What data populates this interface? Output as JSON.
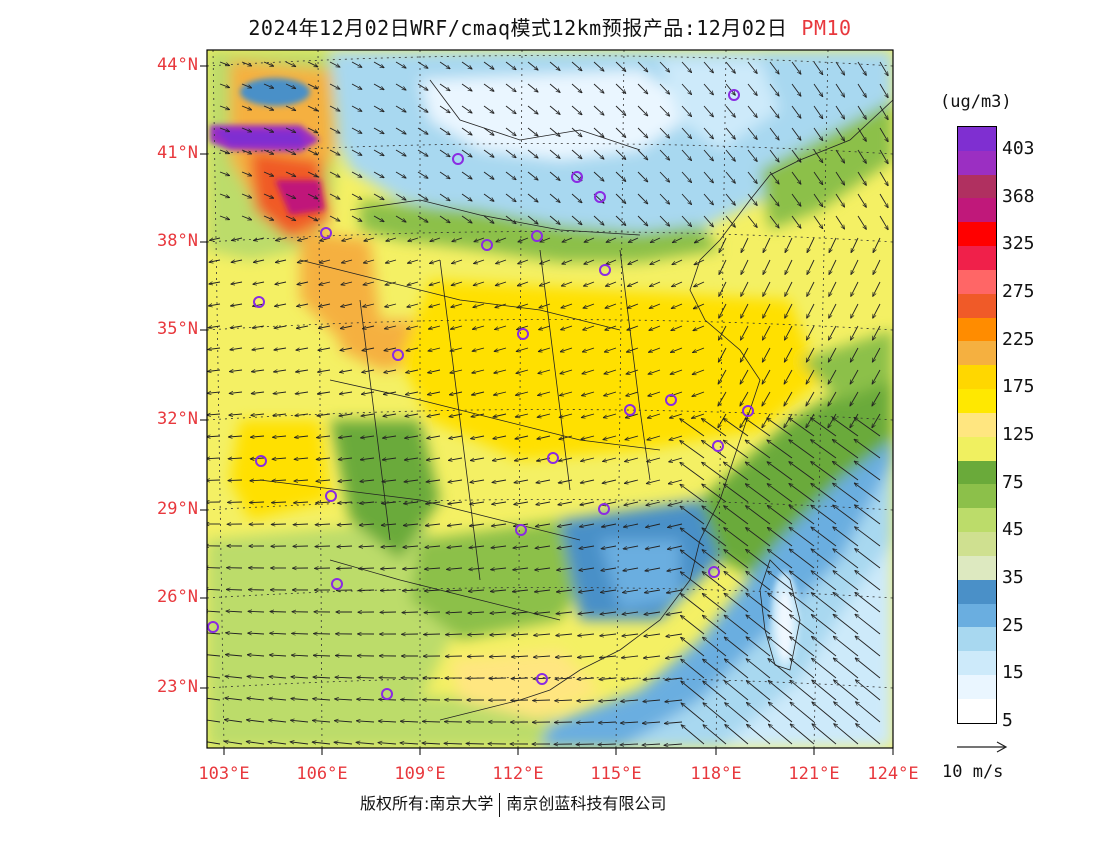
{
  "title": {
    "text": "2024年12月02日WRF/cmaq模式12km预报产品:12月02日",
    "pollutant": "PM10"
  },
  "lat_labels": [
    "44°N",
    "41°N",
    "38°N",
    "35°N",
    "32°N",
    "29°N",
    "26°N",
    "23°N"
  ],
  "lon_labels": [
    "103°E",
    "106°E",
    "109°E",
    "112°E",
    "115°E",
    "118°E",
    "121°E",
    "124°E"
  ],
  "colorbar": {
    "unit": "(ug/m3)",
    "labels": [
      "403",
      "368",
      "325",
      "275",
      "225",
      "175",
      "125",
      "75",
      "45",
      "35",
      "25",
      "15",
      "5"
    ],
    "colors": [
      "#7f2fd1",
      "#9b2fc2",
      "#b03060",
      "#c0187a",
      "#ff0000",
      "#f0204a",
      "#ff6666",
      "#f05a28",
      "#ff8c00",
      "#f5b040",
      "#ffd700",
      "#ffe800",
      "#ffe680",
      "#f0f060",
      "#6aaa3a",
      "#8cc04a",
      "#bcdc6a",
      "#cfe090",
      "#dde9c0",
      "#4a90c8",
      "#6aaee0",
      "#a8d8f0",
      "#cdeafa",
      "#eaf6ff",
      "#ffffff"
    ]
  },
  "wind": {
    "label": "10 m/s"
  },
  "copyright": {
    "left": "版权所有:南京大学",
    "right": "南京创蓝科技有限公司"
  }
}
